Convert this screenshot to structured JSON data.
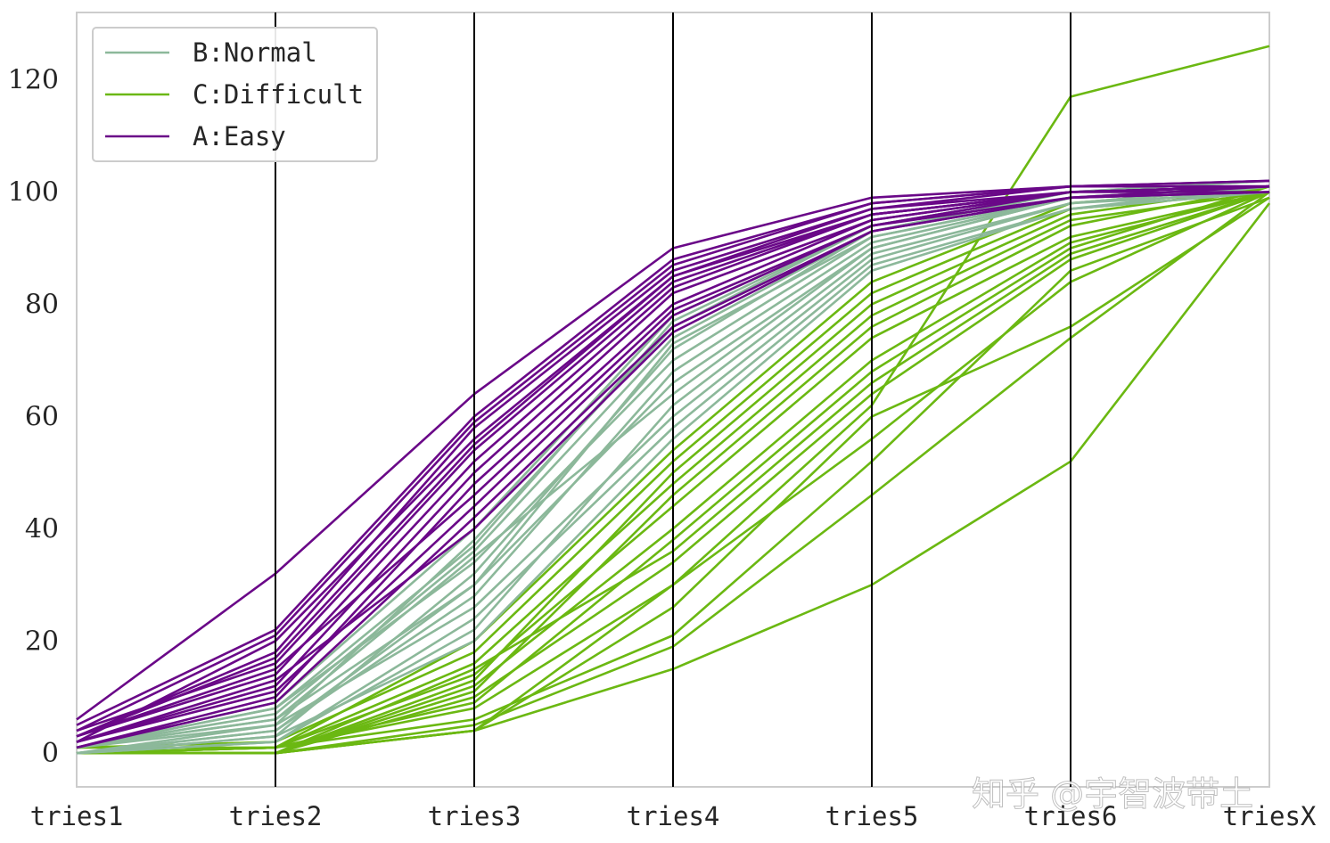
{
  "chart_data": {
    "type": "parallel_coordinates",
    "title": "",
    "xlabel": "",
    "ylabel": "",
    "dimensions": [
      "tries1",
      "tries2",
      "tries3",
      "tries4",
      "tries5",
      "tries6",
      "triesX"
    ],
    "y_ticks": [
      0,
      20,
      40,
      60,
      80,
      100,
      120
    ],
    "ylim": [
      -6,
      132
    ],
    "grid": false,
    "legend": {
      "placement": "top-left",
      "entries": [
        "B:Normal",
        "C:Difficult",
        "A:Easy"
      ]
    },
    "colors": {
      "B:Normal": "#8cb89a",
      "C:Difficult": "#6bb812",
      "A:Easy": "#6a0888"
    },
    "series": [
      {
        "name": "C:Difficult",
        "lines": [
          [
            0,
            0,
            4,
            15,
            30,
            52,
            98
          ],
          [
            0,
            0,
            5,
            19,
            46,
            74,
            100
          ],
          [
            0,
            1,
            6,
            21,
            52,
            86,
            99
          ],
          [
            0,
            0,
            4,
            26,
            60,
            76,
            99
          ],
          [
            0,
            1,
            8,
            30,
            56,
            84,
            100
          ],
          [
            0,
            0,
            10,
            34,
            64,
            88,
            100
          ],
          [
            0,
            1,
            9,
            38,
            68,
            90,
            101
          ],
          [
            0,
            0,
            12,
            40,
            70,
            91,
            100
          ],
          [
            1,
            1,
            14,
            44,
            74,
            92,
            100
          ],
          [
            0,
            0,
            11,
            46,
            76,
            94,
            101
          ],
          [
            0,
            1,
            16,
            48,
            78,
            95,
            100
          ],
          [
            0,
            0,
            13,
            50,
            80,
            96,
            101
          ],
          [
            1,
            2,
            18,
            52,
            82,
            97,
            100
          ],
          [
            0,
            1,
            20,
            54,
            84,
            98,
            101
          ],
          [
            0,
            0,
            15,
            36,
            66,
            89,
            100
          ],
          [
            0,
            0,
            4,
            30,
            62,
            117,
            126
          ]
        ]
      },
      {
        "name": "B:Normal",
        "lines": [
          [
            0,
            3,
            20,
            56,
            86,
            97,
            101
          ],
          [
            1,
            5,
            26,
            60,
            88,
            98,
            101
          ],
          [
            0,
            2,
            22,
            62,
            89,
            98,
            100
          ],
          [
            1,
            6,
            30,
            66,
            90,
            99,
            101
          ],
          [
            0,
            4,
            28,
            68,
            91,
            99,
            101
          ],
          [
            1,
            8,
            34,
            70,
            92,
            99,
            100
          ],
          [
            0,
            3,
            32,
            72,
            93,
            100,
            101
          ],
          [
            1,
            7,
            36,
            74,
            93,
            100,
            101
          ],
          [
            0,
            5,
            38,
            76,
            94,
            100,
            102
          ],
          [
            1,
            9,
            40,
            78,
            94,
            100,
            101
          ],
          [
            0,
            2,
            24,
            58,
            87,
            97,
            100
          ],
          [
            1,
            6,
            35,
            64,
            90,
            99,
            101
          ],
          [
            0,
            4,
            30,
            73,
            92,
            99,
            101
          ],
          [
            1,
            8,
            37,
            77,
            94,
            100,
            102
          ]
        ]
      },
      {
        "name": "A:Easy",
        "lines": [
          [
            6,
            32,
            64,
            90,
            99,
            101,
            101
          ],
          [
            5,
            22,
            60,
            88,
            98,
            101,
            102
          ],
          [
            3,
            18,
            58,
            86,
            97,
            101,
            101
          ],
          [
            2,
            20,
            56,
            85,
            97,
            100,
            101
          ],
          [
            4,
            16,
            54,
            84,
            96,
            100,
            101
          ],
          [
            3,
            14,
            52,
            83,
            96,
            100,
            101
          ],
          [
            2,
            12,
            50,
            82,
            95,
            100,
            101
          ],
          [
            1,
            10,
            48,
            80,
            95,
            100,
            100
          ],
          [
            3,
            15,
            46,
            79,
            94,
            100,
            101
          ],
          [
            2,
            11,
            44,
            78,
            94,
            99,
            100
          ],
          [
            1,
            9,
            42,
            76,
            93,
            99,
            101
          ],
          [
            2,
            13,
            40,
            75,
            93,
            99,
            100
          ],
          [
            3,
            17,
            55,
            85,
            96,
            100,
            101
          ],
          [
            4,
            21,
            59,
            87,
            98,
            101,
            102
          ]
        ]
      }
    ]
  },
  "watermark": "知乎 @宇智波带土"
}
